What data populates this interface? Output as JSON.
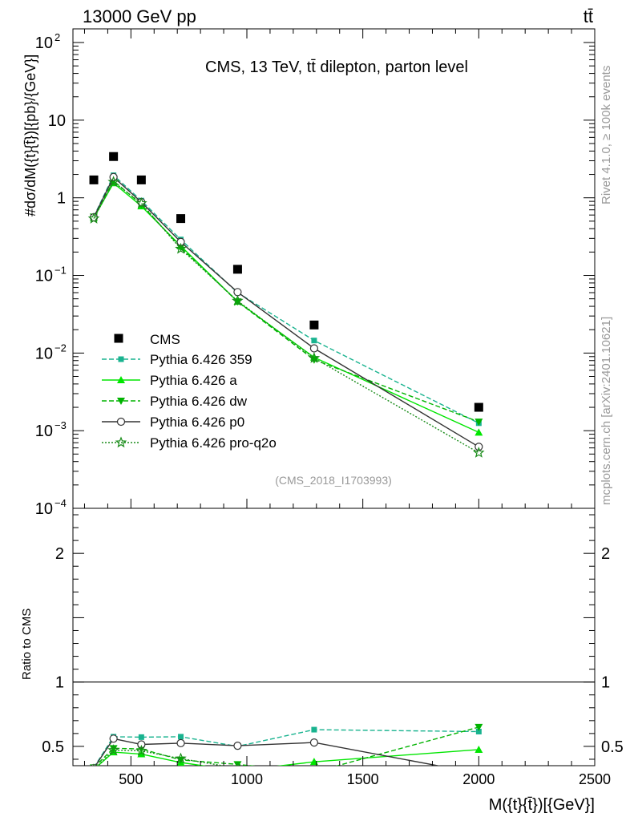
{
  "header": {
    "energy_label": "13000 GeV pp",
    "process_label": "tt̄",
    "rivet_label": "Rivet 4.1.0, ≥ 100k events",
    "source_label": "mcplots.cern.ch [arXiv:2401.10621]"
  },
  "chart_data": {
    "type": "line",
    "title": "CMS, 13 TeV, tt̄ dilepton, parton level",
    "analysis_label": "(CMS_2018_I1703993)",
    "xlabel": "M({t}{t̄})[{GeV}]",
    "ylabel_upper": "#dσ/dM({t}{t̄})[{pb}/{GeV}]",
    "ylabel_lower": "Ratio to CMS",
    "xlim": [
      250,
      2500
    ],
    "ylim_upper": [
      0.0001,
      150
    ],
    "ylim_lower": [
      0.35,
      2.35
    ],
    "x_ticks": [
      500,
      1000,
      1500,
      2000,
      2500
    ],
    "x_tick_labels": [
      "500",
      "1000",
      "1500",
      "2000",
      "2500"
    ],
    "y_ticks_upper": [
      {
        "v": 0.0001,
        "base": "10",
        "exp": "−4"
      },
      {
        "v": 0.001,
        "base": "10",
        "exp": "−3"
      },
      {
        "v": 0.01,
        "base": "10",
        "exp": "−2"
      },
      {
        "v": 0.1,
        "base": "10",
        "exp": "−1"
      },
      {
        "v": 1,
        "base": "1",
        "exp": ""
      },
      {
        "v": 10,
        "base": "10",
        "exp": ""
      },
      {
        "v": 100,
        "base": "10",
        "exp": "2"
      }
    ],
    "y_ticks_lower": [
      {
        "v": 0.5,
        "label": "0.5"
      },
      {
        "v": 1,
        "label": "1"
      },
      {
        "v": 2,
        "label": "2"
      }
    ],
    "x": [
      340,
      425,
      545,
      715,
      960,
      1290,
      2000
    ],
    "data": {
      "name": "CMS",
      "values": [
        1.7,
        3.4,
        1.7,
        0.54,
        0.12,
        0.023,
        0.002
      ]
    },
    "series": [
      {
        "name": "Pythia 6.426 359",
        "color": "#19b38f",
        "dash": "6,3",
        "marker": "square",
        "values": [
          0.57,
          1.95,
          0.92,
          0.29,
          0.06,
          0.0145,
          0.00125
        ],
        "ratio": [
          0.335,
          0.575,
          0.572,
          0.575,
          0.5,
          0.63,
          0.615
        ]
      },
      {
        "name": "Pythia 6.426 a",
        "color": "#00e600",
        "dash": "",
        "marker": "triangle-up",
        "values": [
          0.55,
          1.55,
          0.78,
          0.24,
          0.046,
          0.0088,
          0.00095
        ],
        "ratio": [
          0.32,
          0.455,
          0.44,
          0.375,
          0.31,
          0.38,
          0.475
        ]
      },
      {
        "name": "Pythia 6.426 dw",
        "color": "#00b300",
        "dash": "6,3",
        "marker": "triangle-down",
        "values": [
          0.57,
          1.65,
          0.82,
          0.23,
          0.046,
          0.0082,
          0.0013
        ],
        "ratio": [
          0.335,
          0.485,
          0.48,
          0.395,
          0.36,
          0.3,
          0.65
        ]
      },
      {
        "name": "Pythia 6.426 p0",
        "color": "#333333",
        "dash": "",
        "marker": "circle-open",
        "values": [
          0.56,
          1.85,
          0.88,
          0.27,
          0.061,
          0.0115,
          0.00062
        ],
        "ratio": [
          0.33,
          0.56,
          0.515,
          0.525,
          0.505,
          0.53,
          0.29
        ]
      },
      {
        "name": "Pythia 6.426 pro-q2o",
        "color": "#1a8c1a",
        "dash": "2,2",
        "marker": "star-open",
        "values": [
          0.54,
          1.6,
          0.85,
          0.22,
          0.047,
          0.0086,
          0.00052
        ],
        "ratio": [
          0.32,
          0.47,
          0.465,
          0.405,
          0.33,
          0.3,
          0.26
        ]
      }
    ]
  }
}
